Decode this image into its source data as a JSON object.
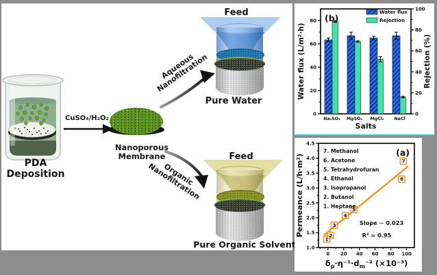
{
  "figure": {
    "background": "#8c8c8c",
    "panel_color": "#ffffff",
    "divider_color": "#3ec4c4"
  },
  "diagram": {
    "pda_label": "PDA Deposition",
    "reagent_label": "CuSO₄/H₂O₂",
    "membrane_label_line1": "Nanoporous",
    "membrane_label_line2": "Membrane",
    "aqueous_label_line1": "Aqueous",
    "aqueous_label_line2": "Nanofiltration",
    "organic_label_line1": "Organic",
    "organic_label_line2": "Nanofiltration",
    "feed_top_label": "Feed",
    "feed_bottom_label": "Feed",
    "pure_water_label": "Pure Water",
    "pure_organic_label": "Pure Organic Solvent",
    "colors": {
      "membrane_green": "#5e9522",
      "feed_blue": "#3a78cc",
      "feed_yellow": "#b1a94c",
      "water_blue": "#1d6ea6",
      "organic_olive": "#87951f",
      "beaker_liquid_green": "#8fae90"
    }
  },
  "chart_data": [
    {
      "id": "b",
      "type": "bar",
      "panel_label": "(b)",
      "categories": [
        "Na₂SO₄",
        "MgSO₄",
        "MgCl₂",
        "NaCl"
      ],
      "series": [
        {
          "name": "Water flux",
          "axis": "left",
          "values": [
            63.5,
            67,
            65,
            67
          ],
          "errors": [
            1.5,
            3,
            1.5,
            3
          ],
          "color": "#2e6fe0",
          "hatch_color": "#0e3aa0",
          "hatch": true
        },
        {
          "name": "Rejection",
          "axis": "right",
          "values": [
            88,
            69,
            52,
            16
          ],
          "errors": [
            0.8,
            0.8,
            2.5,
            0.8
          ],
          "color": "#3fe3a6",
          "hatch": false
        }
      ],
      "xlabel": "Salts",
      "ylabel_left": "Water flux (L/m²·h)",
      "ylabel_right": "Rejection (%)",
      "ylim_left": [
        0,
        90
      ],
      "yticks_left": [
        0,
        20,
        40,
        60,
        80
      ],
      "yminor_left": [
        10,
        30,
        50,
        70
      ],
      "ylim_right": [
        0,
        100
      ],
      "yticks_right": [
        0,
        20,
        40,
        60,
        80,
        100
      ],
      "yminor_right": [
        10,
        30,
        50,
        70,
        90
      ],
      "legend": [
        "Water flux",
        "Rejection"
      ],
      "legend_position": "top-right",
      "grid": false
    },
    {
      "id": "a",
      "type": "scatter",
      "panel_label": "(a)",
      "points": [
        {
          "n": 1,
          "label": "Heptane",
          "x": -1.5,
          "y": 1.28
        },
        {
          "n": 2,
          "label": "Butanol",
          "x": 3.5,
          "y": 1.41
        },
        {
          "n": 3,
          "label": "Isopropanol",
          "x": 8,
          "y": 1.75
        },
        {
          "n": 4,
          "label": "Ethanol",
          "x": 22,
          "y": 2.08
        },
        {
          "n": 5,
          "label": "Tetrahydrofuran",
          "x": 33,
          "y": 2.28
        },
        {
          "n": 6,
          "label": "Acetone",
          "x": 94,
          "y": 3.3
        },
        {
          "n": 7,
          "label": "Methanol",
          "x": 96,
          "y": 3.9
        }
      ],
      "solvent_list": [
        "7. Methanol",
        "6. Acetone",
        "5. Tetrahydrofuran",
        "4. Ethanol",
        "3. Isopropanol",
        "2. Butanol",
        "1. Heptane"
      ],
      "fit_line": {
        "x1": -5,
        "y1": 1.42,
        "x2": 102,
        "y2": 3.73,
        "color": "#f59322",
        "slope_label": "Slope ~ 0.023"
      },
      "annotations": [
        "Slope ~ 0.023",
        "R² = 0.95"
      ],
      "xlabel_parts": [
        {
          "t": "δ"
        },
        {
          "t": "p",
          "s": "sub"
        },
        {
          "t": "·η⁻¹·d"
        },
        {
          "t": "m",
          "s": "sub"
        },
        {
          "t": "⁻² (×10⁻³)"
        }
      ],
      "ylabel": "Permeance (L/h·m²)",
      "xlim": [
        -12,
        110
      ],
      "xticks": [
        0,
        20,
        40,
        60,
        80,
        100
      ],
      "xminor": [
        -10,
        10,
        30,
        50,
        70,
        90
      ],
      "ylim": [
        1.0,
        4.5
      ],
      "yticks": [
        1.0,
        1.5,
        2.0,
        2.5,
        3.0,
        3.5,
        4.0,
        4.5
      ],
      "yminor": [
        1.25,
        1.75,
        2.25,
        2.75,
        3.25,
        3.75,
        4.25
      ],
      "point_color": "#f59322",
      "grid": false
    }
  ]
}
